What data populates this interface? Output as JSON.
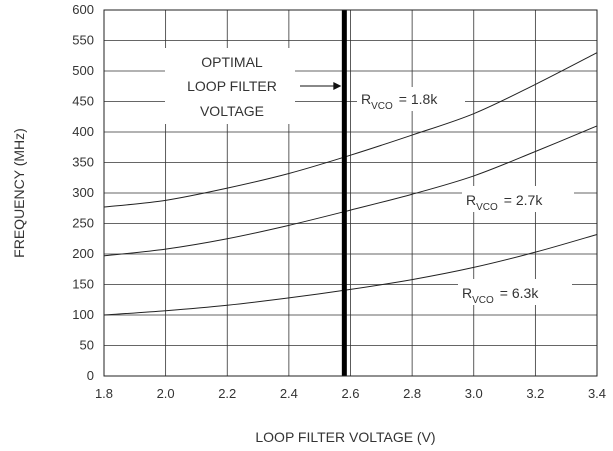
{
  "chart_data": {
    "type": "line",
    "xlabel": "LOOP FILTER VOLTAGE (V)",
    "ylabel": "FREQUENCY (MHz)",
    "xlim": [
      1.8,
      3.4
    ],
    "ylim": [
      0,
      600
    ],
    "x_ticks": [
      "1.8",
      "2.0",
      "2.2",
      "2.4",
      "2.6",
      "2.8",
      "3.0",
      "3.2",
      "3.4"
    ],
    "y_ticks": [
      "0",
      "50",
      "100",
      "150",
      "200",
      "250",
      "300",
      "350",
      "400",
      "450",
      "500",
      "550",
      "600"
    ],
    "grid": true,
    "x_grid_step": 0.2,
    "y_grid_step": 50,
    "vertical_marker": {
      "x": 2.58,
      "label_lines": [
        "OPTIMAL",
        "LOOP FILTER",
        "VOLTAGE"
      ]
    },
    "series": [
      {
        "name_main": "R",
        "name_sub": "VCO",
        "name_value": "= 1.8k",
        "x": [
          1.8,
          2.0,
          2.2,
          2.4,
          2.6,
          2.8,
          3.0,
          3.2,
          3.4
        ],
        "y": [
          277,
          288,
          308,
          332,
          362,
          395,
          430,
          478,
          530
        ]
      },
      {
        "name_main": "R",
        "name_sub": "VCO",
        "name_value": "= 2.7k",
        "x": [
          1.8,
          2.0,
          2.2,
          2.4,
          2.6,
          2.8,
          3.0,
          3.2,
          3.4
        ],
        "y": [
          197,
          208,
          225,
          247,
          272,
          298,
          328,
          368,
          410
        ]
      },
      {
        "name_main": "R",
        "name_sub": "VCO",
        "name_value": "= 6.3k",
        "x": [
          1.8,
          2.0,
          2.2,
          2.4,
          2.6,
          2.8,
          3.0,
          3.2,
          3.4
        ],
        "y": [
          100,
          107,
          116,
          128,
          142,
          158,
          178,
          203,
          232
        ]
      }
    ]
  }
}
